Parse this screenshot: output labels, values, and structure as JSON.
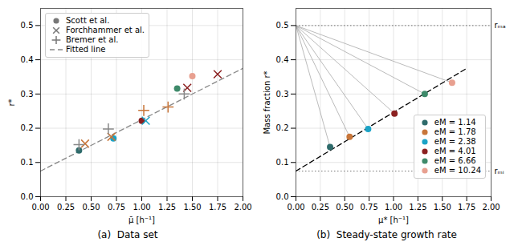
{
  "chart_data": [
    {
      "type": "scatter",
      "title": "(a)  Data set",
      "xlabel": "μ̄ [h⁻¹]",
      "ylabel": "r*",
      "xlim": [
        0.0,
        2.0
      ],
      "ylim": [
        0.0,
        0.55
      ],
      "xticks": [
        {
          "value": 0.0,
          "label": "0.00"
        },
        0.25,
        {
          "value": 0.5,
          "label": "0.50"
        },
        0.75,
        {
          "value": 1.0,
          "label": "1.00"
        },
        1.25,
        {
          "value": 1.5,
          "label": "1.50"
        },
        1.75,
        {
          "value": 2.0,
          "label": "2.00"
        }
      ],
      "yticks": [
        {
          "value": 0.0,
          "label": "0.0"
        },
        0.1,
        0.2,
        0.3,
        0.4,
        0.5
      ],
      "grid": true,
      "legend": "upper left",
      "series": [
        {
          "name": "Scott et al.",
          "marker": "o",
          "x": [
            0.38,
            0.72,
            1.0,
            1.35,
            1.5
          ],
          "values": [
            0.135,
            0.17,
            0.222,
            0.316,
            0.352
          ],
          "colors": [
            "#2e6b6b",
            "#1ba3c6",
            "#8b2020",
            "#3e8a6a",
            "#e8a090"
          ]
        },
        {
          "name": "Forchhammer et al.",
          "marker": "x",
          "x": [
            0.44,
            0.7,
            1.04,
            1.45,
            1.75
          ],
          "values": [
            0.155,
            0.175,
            0.222,
            0.318,
            0.358
          ],
          "colors": [
            "#c8763a",
            "#c8763a",
            "#1ba3c6",
            "#8b2020",
            "#8b2020"
          ]
        },
        {
          "name": "Bremer et al.",
          "marker": "+",
          "x": [
            0.38,
            0.67,
            1.02,
            1.26,
            1.42
          ],
          "values": [
            0.152,
            0.198,
            0.252,
            0.262,
            0.3
          ],
          "colors": [
            "#888888",
            "#888888",
            "#c8763a",
            "#c8763a",
            "#888888"
          ]
        },
        {
          "name": "Fitted line",
          "type": "line",
          "line_style": "dashed",
          "color": "#888888",
          "x": [
            0.0,
            2.0
          ],
          "values": [
            0.075,
            0.375
          ]
        }
      ]
    },
    {
      "type": "scatter",
      "title": "(b)  Steady-state growth rate",
      "xlabel": "μ* [h⁻¹]",
      "ylabel": "Mass fraction r*",
      "xlim": [
        0.0,
        2.0
      ],
      "ylim": [
        0.0,
        0.55
      ],
      "xticks": [
        {
          "value": 0.0,
          "label": "0.00"
        },
        0.25,
        {
          "value": 0.5,
          "label": "0.50"
        },
        0.75,
        {
          "value": 1.0,
          "label": "1.00"
        },
        1.25,
        {
          "value": 1.5,
          "label": "1.50"
        },
        1.75,
        {
          "value": 2.0,
          "label": "2.00"
        }
      ],
      "yticks": [
        {
          "value": 0.0,
          "label": "0.0"
        },
        0.1,
        0.2,
        0.3,
        0.4,
        0.5
      ],
      "grid": true,
      "legend": "lower right",
      "fan_origin": [
        0.0,
        0.5
      ],
      "fitted_line": {
        "type": "line",
        "line_style": "dashed",
        "color": "#000000",
        "x": [
          0.0,
          1.75
        ],
        "values": [
          0.075,
          0.375
        ]
      },
      "hlines": [
        {
          "value": 0.5,
          "label": "rₘₐ",
          "color": "#555555",
          "line_style": "dotted"
        },
        {
          "value": 0.075,
          "label": "rₘᵢ",
          "color": "#555555",
          "line_style": "dotted"
        }
      ],
      "series": [
        {
          "name": "eM = 1.14",
          "marker": "o",
          "color": "#2e6b6b",
          "x": [
            0.35
          ],
          "values": [
            0.145
          ]
        },
        {
          "name": "eM = 1.78",
          "marker": "o",
          "color": "#c8763a",
          "x": [
            0.55
          ],
          "values": [
            0.175
          ]
        },
        {
          "name": "eM = 2.38",
          "marker": "o",
          "color": "#1ba3c6",
          "x": [
            0.74
          ],
          "values": [
            0.198
          ]
        },
        {
          "name": "eM = 4.01",
          "marker": "o",
          "color": "#8b2020",
          "x": [
            1.01
          ],
          "values": [
            0.243
          ]
        },
        {
          "name": "eM = 6.66",
          "marker": "o",
          "color": "#3e8a6a",
          "x": [
            1.32
          ],
          "values": [
            0.3
          ]
        },
        {
          "name": "eM = 10.24",
          "marker": "o",
          "color": "#e8a090",
          "x": [
            1.6
          ],
          "values": [
            0.333
          ]
        }
      ]
    }
  ]
}
